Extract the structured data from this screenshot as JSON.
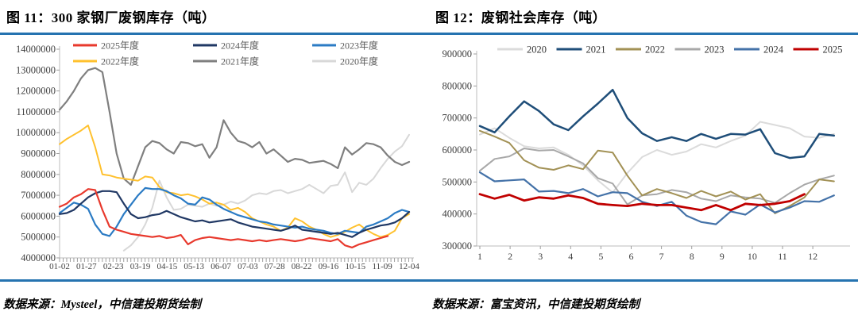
{
  "fig11": {
    "title": "图 11：300 家钢厂废钢库存（吨）",
    "source": "数据来源：Mysteel，中信建投期货绘制"
  },
  "fig12": {
    "title": "图 12：废钢社会库存（吨）",
    "source": "数据来源：富宝资讯，中信建投期货绘制"
  },
  "chart_data": [
    {
      "id": "fig11",
      "type": "line",
      "title": "300 家钢厂废钢库存（吨）",
      "xlabel": "",
      "ylabel": "",
      "ylim": [
        4000000,
        14000000
      ],
      "ytick_step": 1000000,
      "grid": false,
      "legend_position": "top-inside-grid-3x2",
      "x_tick_labels": [
        "01-02",
        "01-27",
        "02-23",
        "03-19",
        "04-15",
        "05-13",
        "06-07",
        "07-03",
        "07-28",
        "08-22",
        "09-16",
        "10-15",
        "11-09",
        "12-04"
      ],
      "series": [
        {
          "name": "2025年度",
          "color": "#e8392d",
          "width": 2.2,
          "values": [
            6450000,
            6600000,
            6900000,
            7050000,
            7300000,
            7250000,
            6300000,
            5500000,
            5350000,
            5250000,
            5150000,
            5100000,
            5050000,
            5000000,
            5050000,
            4950000,
            5000000,
            5100000,
            4650000,
            4850000,
            4950000,
            5000000,
            4950000,
            4900000,
            4850000,
            4900000,
            4850000,
            4800000,
            4850000,
            4800000,
            4850000,
            4900000,
            4850000,
            4800000,
            4850000,
            4950000,
            4900000,
            4850000,
            4800000,
            4900000,
            4600000,
            4500000,
            4650000,
            4750000,
            4850000,
            4950000,
            5050000,
            null,
            null,
            null
          ]
        },
        {
          "name": "2024年度",
          "color": "#203864",
          "width": 2.2,
          "values": [
            6100000,
            6150000,
            6300000,
            6600000,
            6900000,
            7100000,
            7200000,
            7200000,
            7150000,
            6600000,
            6100000,
            5900000,
            5950000,
            6050000,
            6100000,
            6250000,
            6100000,
            5950000,
            5850000,
            5750000,
            5800000,
            5700000,
            5750000,
            5800000,
            5850000,
            5700000,
            5600000,
            5500000,
            5450000,
            5400000,
            5350000,
            5300000,
            5400000,
            5550000,
            5350000,
            5300000,
            5250000,
            5200000,
            5150000,
            5200000,
            5100000,
            5000000,
            5200000,
            5350000,
            5450000,
            5550000,
            5600000,
            5700000,
            5900000,
            6200000
          ]
        },
        {
          "name": "2023年度",
          "color": "#2b7bc4",
          "width": 2.2,
          "values": [
            6150000,
            6400000,
            6650000,
            6550000,
            6350000,
            5600000,
            5150000,
            5050000,
            5500000,
            6100000,
            6550000,
            7000000,
            7350000,
            7300000,
            7300000,
            7200000,
            7000000,
            6850000,
            6600000,
            6550000,
            6900000,
            6800000,
            6550000,
            6350000,
            6200000,
            6050000,
            5950000,
            5850000,
            5750000,
            5700000,
            5600000,
            5550000,
            5500000,
            5450000,
            5500000,
            5400000,
            5350000,
            5300000,
            5200000,
            5150000,
            5300000,
            5250000,
            5200000,
            5500000,
            5600000,
            5750000,
            5900000,
            6150000,
            6300000,
            6200000
          ]
        },
        {
          "name": "2022年度",
          "color": "#ffc12e",
          "width": 2,
          "values": [
            9450000,
            9700000,
            9900000,
            10100000,
            10350000,
            9300000,
            8000000,
            7950000,
            7850000,
            7800000,
            7750000,
            7700000,
            7900000,
            7850000,
            7400000,
            7150000,
            7100000,
            7000000,
            7050000,
            6950000,
            6800000,
            6600000,
            6650000,
            6550000,
            6300000,
            6400000,
            6200000,
            5900000,
            5750000,
            5600000,
            5500000,
            5300000,
            5450000,
            5900000,
            5750000,
            5500000,
            5350000,
            5150000,
            5000000,
            5100000,
            5250000,
            5450000,
            5600000,
            5350000,
            5150000,
            5000000,
            5100000,
            5300000,
            5900000,
            6100000
          ]
        },
        {
          "name": "2021年度",
          "color": "#7f7f7f",
          "width": 2.2,
          "values": [
            11100000,
            11500000,
            12000000,
            12600000,
            13000000,
            13100000,
            12900000,
            11000000,
            9000000,
            7800000,
            7500000,
            8400000,
            9300000,
            9600000,
            9500000,
            9200000,
            9000000,
            9550000,
            9500000,
            9350000,
            9450000,
            8800000,
            9300000,
            10600000,
            10000000,
            9600000,
            9500000,
            9300000,
            9550000,
            9000000,
            9200000,
            8900000,
            8600000,
            8750000,
            8700000,
            8550000,
            8600000,
            8650000,
            8500000,
            8300000,
            9300000,
            8950000,
            9200000,
            9500000,
            9450000,
            9300000,
            8900000,
            8600000,
            8450000,
            8600000
          ]
        },
        {
          "name": "2020年度",
          "color": "#d8d8d8",
          "width": 2,
          "values": [
            null,
            null,
            null,
            null,
            null,
            null,
            null,
            null,
            null,
            4350000,
            4600000,
            5000000,
            5600000,
            6400000,
            7700000,
            6900000,
            6300000,
            6350000,
            6550000,
            6500000,
            6450000,
            6600000,
            6500000,
            6550000,
            6700000,
            6600000,
            6750000,
            7000000,
            7100000,
            7050000,
            7200000,
            7250000,
            7100000,
            7200000,
            7300000,
            7500000,
            7300000,
            7100000,
            7450000,
            7500000,
            8100000,
            7150000,
            7600000,
            7500000,
            7800000,
            8300000,
            8750000,
            9100000,
            9350000,
            9900000
          ]
        }
      ]
    },
    {
      "id": "fig12",
      "type": "line",
      "title": "废钢社会库存（吨）",
      "xlabel": "",
      "ylabel": "",
      "ylim": [
        300000,
        900000
      ],
      "ytick_step": 100000,
      "grid": false,
      "legend_position": "top-inside-row",
      "x_range": [
        1,
        12.7
      ],
      "x_tick_labels": [
        "1",
        "2",
        "3",
        "4",
        "5",
        "6",
        "7",
        "8",
        "9",
        "10",
        "11",
        "12"
      ],
      "series": [
        {
          "name": "2020",
          "color": "#dbdbdb",
          "width": 2,
          "values": [
            648000,
            668000,
            638000,
            612000,
            605000,
            608000,
            585000,
            552000,
            505000,
            467000,
            528000,
            578000,
            600000,
            585000,
            595000,
            618000,
            608000,
            628000,
            645000,
            688000,
            678000,
            668000,
            642000,
            638000,
            650000
          ]
        },
        {
          "name": "2021",
          "color": "#1f4e79",
          "width": 2.5,
          "values": [
            675000,
            655000,
            705000,
            752000,
            722000,
            680000,
            662000,
            705000,
            745000,
            788000,
            700000,
            652000,
            628000,
            640000,
            628000,
            650000,
            635000,
            650000,
            648000,
            665000,
            590000,
            575000,
            580000,
            650000,
            645000
          ]
        },
        {
          "name": "2022",
          "color": "#a29155",
          "width": 2,
          "values": [
            660000,
            642000,
            622000,
            568000,
            545000,
            538000,
            552000,
            540000,
            598000,
            592000,
            520000,
            458000,
            478000,
            465000,
            450000,
            472000,
            455000,
            470000,
            445000,
            462000,
            402000,
            425000,
            452000,
            508000,
            502000
          ]
        },
        {
          "name": "2023",
          "color": "#a8a8a8",
          "width": 2,
          "values": [
            535000,
            572000,
            580000,
            605000,
            598000,
            600000,
            580000,
            558000,
            512000,
            495000,
            430000,
            458000,
            462000,
            475000,
            468000,
            448000,
            440000,
            458000,
            452000,
            448000,
            435000,
            465000,
            492000,
            508000,
            520000
          ]
        },
        {
          "name": "2024",
          "color": "#4472a8",
          "width": 2.2,
          "values": [
            530000,
            502000,
            505000,
            508000,
            470000,
            472000,
            465000,
            478000,
            455000,
            468000,
            465000,
            438000,
            425000,
            438000,
            395000,
            375000,
            368000,
            408000,
            398000,
            430000,
            405000,
            420000,
            440000,
            438000,
            458000
          ]
        },
        {
          "name": "2025",
          "color": "#c00000",
          "width": 2.8,
          "values": [
            462000,
            448000,
            460000,
            442000,
            452000,
            448000,
            458000,
            450000,
            432000,
            428000,
            425000,
            432000,
            428000,
            428000,
            420000,
            412000,
            428000,
            412000,
            432000,
            428000,
            432000,
            440000,
            462000,
            null,
            null
          ]
        }
      ]
    }
  ]
}
